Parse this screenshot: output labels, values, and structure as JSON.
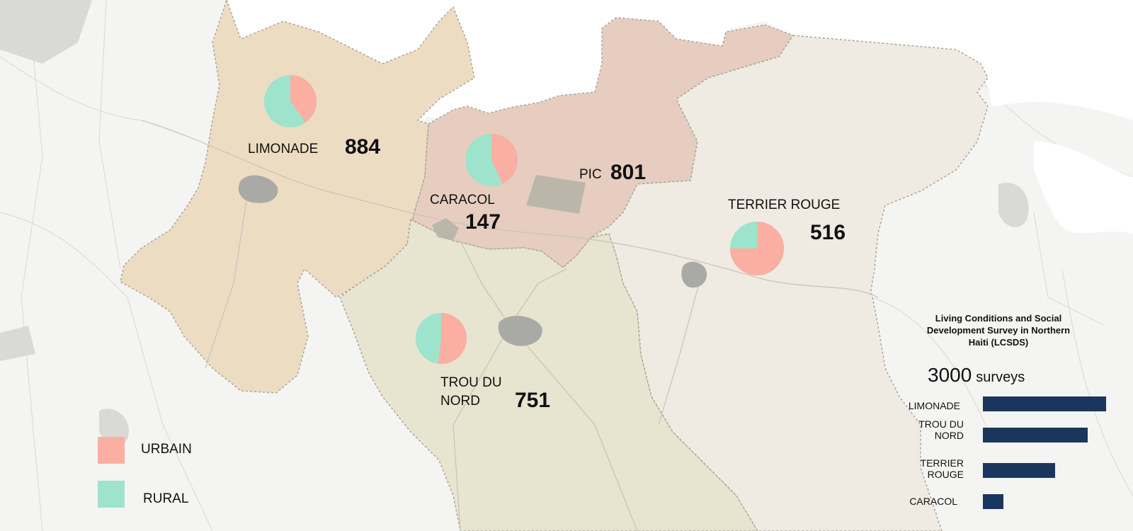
{
  "communes": [
    {
      "key": "limonade",
      "name": "LIMONADE",
      "count": "884",
      "urban_pct": 40
    },
    {
      "key": "caracol",
      "name": "CARACOL",
      "count": "147",
      "urban_pct": 43
    },
    {
      "key": "pic",
      "name": "PIC",
      "count": "801"
    },
    {
      "key": "terrier_rouge",
      "name": "TERRIER ROUGE",
      "count": "516",
      "urban_pct": 75
    },
    {
      "key": "trou_du_nord",
      "name": "TROU DU NORD",
      "name_line1": "TROU DU",
      "name_line2": "NORD",
      "count": "751",
      "urban_pct": 52
    }
  ],
  "legend": [
    {
      "label": "URBAIN",
      "color": "#fbaea2"
    },
    {
      "label": "RURAL",
      "color": "#9ee3cc"
    }
  ],
  "panel": {
    "title_line1": "Living Conditions and Social",
    "title_line2": "Development Survey in Northern",
    "title_line3": "Haiti (LCSDS)",
    "total_number": "3000",
    "total_unit": "surveys",
    "bars": [
      {
        "label_line1": "LIMONADE",
        "label_line2": "",
        "value": 884
      },
      {
        "label_line1": "TROU DU",
        "label_line2": "NORD",
        "value": 751
      },
      {
        "label_line1": "TERRIER",
        "label_line2": "ROUGE",
        "value": 516
      },
      {
        "label_line1": "CARACOL",
        "label_line2": "",
        "value": 147
      }
    ]
  },
  "colors": {
    "limonade_fill": "#ecdcc2",
    "caracol_pic_fill": "#e6cdbf",
    "trou_du_nord_fill": "#e7e4cf",
    "terrier_rouge_fill": "#efebe3",
    "water": "#ffffff",
    "bar": "#1b365d"
  }
}
